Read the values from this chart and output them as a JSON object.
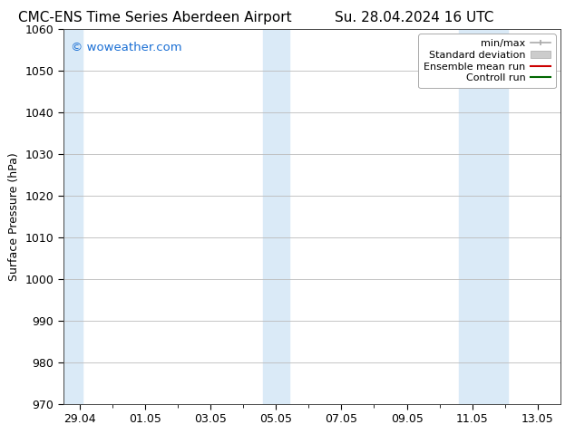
{
  "title_left": "CMC-ENS Time Series Aberdeen Airport",
  "title_right": "Su. 28.04.2024 16 UTC",
  "ylabel": "Surface Pressure (hPa)",
  "watermark": "© woweather.com",
  "watermark_color": "#1a6fd4",
  "ylim": [
    970,
    1060
  ],
  "yticks": [
    970,
    980,
    990,
    1000,
    1010,
    1020,
    1030,
    1040,
    1050,
    1060
  ],
  "x_labels": [
    "29.04",
    "01.05",
    "03.05",
    "05.05",
    "07.05",
    "09.05",
    "11.05",
    "13.05"
  ],
  "x_positions": [
    0,
    2,
    4,
    6,
    8,
    10,
    12,
    14
  ],
  "xlim": [
    -0.5,
    14.7
  ],
  "shaded_bands": [
    {
      "x_start": -0.5,
      "x_end": 0.08,
      "color": "#daeaf7"
    },
    {
      "x_start": 5.6,
      "x_end": 6.4,
      "color": "#daeaf7"
    },
    {
      "x_start": 11.6,
      "x_end": 13.1,
      "color": "#daeaf7"
    }
  ],
  "legend_entries": [
    {
      "label": "min/max",
      "color": "#aaaaaa",
      "lw": 1.2
    },
    {
      "label": "Standard deviation",
      "color": "#cccccc",
      "lw": 8
    },
    {
      "label": "Ensemble mean run",
      "color": "#cc0000",
      "lw": 1.5
    },
    {
      "label": "Controll run",
      "color": "#006600",
      "lw": 1.5
    }
  ],
  "bg_color": "#ffffff",
  "plot_bg": "#ffffff",
  "grid_color": "#bbbbbb",
  "tick_font_size": 9,
  "label_font_size": 9,
  "title_font_size": 11
}
